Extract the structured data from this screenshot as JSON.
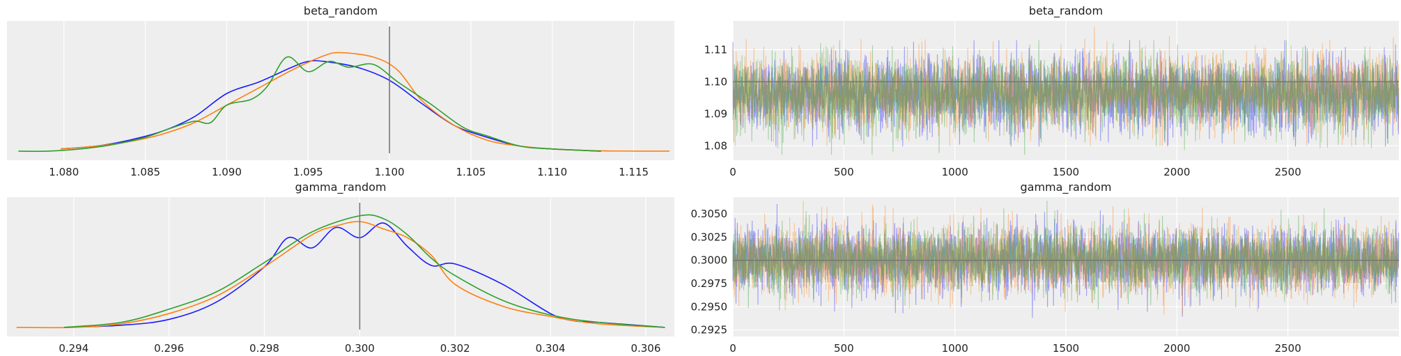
{
  "chart_data": [
    {
      "panel": "beta-density",
      "type": "line",
      "title": "beta_random",
      "xlim": [
        1.0765,
        1.1175
      ],
      "xticks": [
        1.08,
        1.085,
        1.09,
        1.095,
        1.1,
        1.105,
        1.11,
        1.115
      ],
      "xtick_labels": [
        "1.080",
        "1.085",
        "1.090",
        "1.095",
        "1.100",
        "1.105",
        "1.110",
        "1.115"
      ],
      "yticks_visible": false,
      "ref_line_x": 1.1,
      "series": [
        {
          "color": "#1a1aff",
          "x": [
            1.0798,
            1.082,
            1.084,
            1.086,
            1.088,
            1.09,
            1.092,
            1.094,
            1.095,
            1.096,
            1.098,
            1.1,
            1.102,
            1.104,
            1.106,
            1.108,
            1.11,
            1.113
          ],
          "y": [
            0.02,
            0.04,
            0.08,
            0.14,
            0.24,
            0.4,
            0.48,
            0.58,
            0.62,
            0.62,
            0.58,
            0.49,
            0.33,
            0.18,
            0.1,
            0.04,
            0.02,
            0.005
          ]
        },
        {
          "color": "#ff7f0e",
          "x": [
            1.0798,
            1.082,
            1.084,
            1.086,
            1.088,
            1.09,
            1.092,
            1.094,
            1.096,
            1.097,
            1.099,
            1.1005,
            1.102,
            1.104,
            1.106,
            1.108,
            1.11,
            1.112,
            1.114,
            1.1172
          ],
          "y": [
            0.02,
            0.04,
            0.07,
            0.12,
            0.2,
            0.32,
            0.44,
            0.56,
            0.66,
            0.68,
            0.65,
            0.56,
            0.35,
            0.18,
            0.08,
            0.04,
            0.02,
            0.01,
            0.006,
            0.005
          ]
        },
        {
          "color": "#2ca02c",
          "x": [
            1.0772,
            1.079,
            1.081,
            1.083,
            1.085,
            1.0865,
            1.088,
            1.089,
            1.09,
            1.0915,
            1.0925,
            1.0937,
            1.095,
            1.0963,
            1.0975,
            1.099,
            1.1005,
            1.1025,
            1.1045,
            1.106,
            1.108,
            1.11,
            1.113
          ],
          "y": [
            0.005,
            0.005,
            0.02,
            0.05,
            0.1,
            0.16,
            0.21,
            0.2,
            0.32,
            0.36,
            0.45,
            0.65,
            0.55,
            0.62,
            0.58,
            0.6,
            0.48,
            0.33,
            0.17,
            0.11,
            0.04,
            0.02,
            0.005
          ]
        }
      ]
    },
    {
      "panel": "beta-trace",
      "type": "line",
      "title": "beta_random",
      "xlim": [
        0,
        3000
      ],
      "ylim": [
        1.0755,
        1.119
      ],
      "xticks": [
        0,
        500,
        1000,
        1500,
        2000,
        2500
      ],
      "xtick_labels": [
        "0",
        "500",
        "1000",
        "1500",
        "2000",
        "2500"
      ],
      "yticks": [
        1.08,
        1.09,
        1.1,
        1.11
      ],
      "ytick_labels": [
        "1.08",
        "1.09",
        "1.10",
        "1.11"
      ],
      "ref_line_y": 1.1,
      "series": [
        {
          "color": "#1a1aff",
          "draws": 3000,
          "mean": 1.0963,
          "sd": 0.0058,
          "range": [
            1.0798,
            1.113
          ]
        },
        {
          "color": "#ff7f0e",
          "draws": 3000,
          "mean": 1.0966,
          "sd": 0.0058,
          "range": [
            1.0799,
            1.1172
          ]
        },
        {
          "color": "#2ca02c",
          "draws": 3000,
          "mean": 1.0962,
          "sd": 0.0057,
          "range": [
            1.0772,
            1.113
          ]
        }
      ]
    },
    {
      "panel": "gamma-density",
      "type": "line",
      "title": "gamma_random",
      "xlim": [
        0.2926,
        0.3066
      ],
      "xticks": [
        0.294,
        0.296,
        0.298,
        0.3,
        0.302,
        0.304,
        0.306
      ],
      "xtick_labels": [
        "0.294",
        "0.296",
        "0.298",
        "0.300",
        "0.302",
        "0.304",
        "0.306"
      ],
      "yticks_visible": false,
      "ref_line_x": 0.3,
      "series": [
        {
          "color": "#1a1aff",
          "x": [
            0.2938,
            0.295,
            0.296,
            0.297,
            0.298,
            0.2985,
            0.299,
            0.2995,
            0.3,
            0.3005,
            0.301,
            0.3015,
            0.302,
            0.303,
            0.304,
            0.3045,
            0.305,
            0.3064
          ],
          "y": [
            0.005,
            0.02,
            0.06,
            0.18,
            0.42,
            0.62,
            0.55,
            0.69,
            0.62,
            0.72,
            0.56,
            0.43,
            0.44,
            0.3,
            0.1,
            0.05,
            0.04,
            0.005
          ]
        },
        {
          "color": "#ff7f0e",
          "x": [
            0.2928,
            0.294,
            0.295,
            0.296,
            0.297,
            0.298,
            0.299,
            0.2995,
            0.3,
            0.3005,
            0.301,
            0.3015,
            0.302,
            0.303,
            0.304,
            0.305,
            0.3064
          ],
          "y": [
            0.005,
            0.005,
            0.03,
            0.1,
            0.22,
            0.42,
            0.64,
            0.7,
            0.73,
            0.68,
            0.62,
            0.5,
            0.3,
            0.15,
            0.08,
            0.03,
            0.005
          ]
        },
        {
          "color": "#2ca02c",
          "x": [
            0.2938,
            0.295,
            0.296,
            0.297,
            0.298,
            0.299,
            0.3,
            0.3005,
            0.301,
            0.3015,
            0.302,
            0.303,
            0.304,
            0.305,
            0.3064
          ],
          "y": [
            0.005,
            0.04,
            0.13,
            0.25,
            0.45,
            0.66,
            0.77,
            0.75,
            0.64,
            0.48,
            0.36,
            0.19,
            0.09,
            0.04,
            0.005
          ]
        }
      ]
    },
    {
      "panel": "gamma-trace",
      "type": "line",
      "title": "gamma_random",
      "xlim": [
        0,
        3000
      ],
      "ylim": [
        0.2918,
        0.3068
      ],
      "xticks": [
        0,
        500,
        1000,
        1500,
        2000,
        2500
      ],
      "xtick_labels": [
        "0",
        "500",
        "1000",
        "1500",
        "2000",
        "2500"
      ],
      "yticks": [
        0.2925,
        0.295,
        0.2975,
        0.3,
        0.3025,
        0.305
      ],
      "ytick_labels": [
        "0.2925",
        "0.2950",
        "0.2975",
        "0.3000",
        "0.3025",
        "0.3050"
      ],
      "ref_line_y": 0.3,
      "series": [
        {
          "color": "#1a1aff",
          "draws": 3000,
          "mean": 0.3001,
          "sd": 0.0018,
          "range": [
            0.2938,
            0.3064
          ]
        },
        {
          "color": "#ff7f0e",
          "draws": 3000,
          "mean": 0.3,
          "sd": 0.0018,
          "range": [
            0.2928,
            0.3064
          ]
        },
        {
          "color": "#2ca02c",
          "draws": 3000,
          "mean": 0.3001,
          "sd": 0.0017,
          "range": [
            0.2938,
            0.3064
          ]
        }
      ]
    }
  ]
}
